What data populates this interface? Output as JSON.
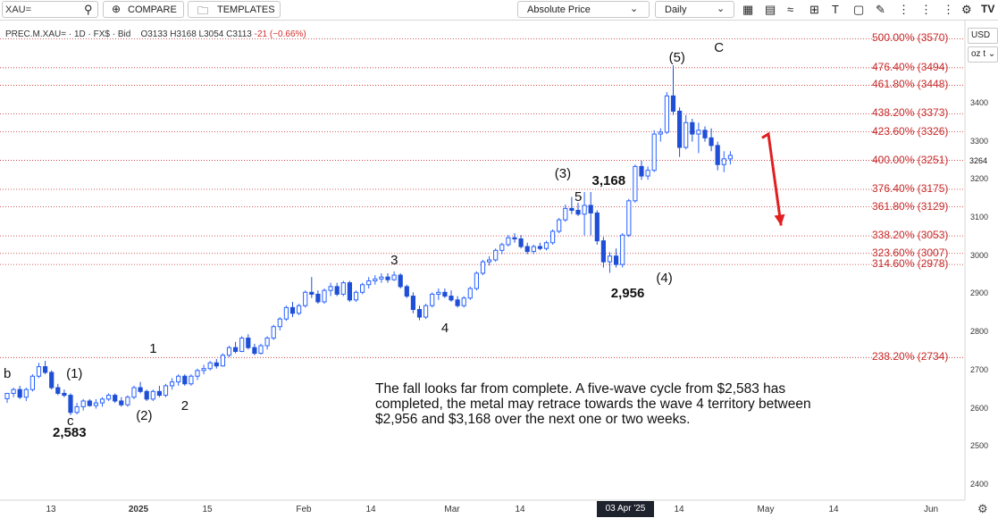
{
  "toolbar": {
    "symbol_value": "XAU=",
    "compare_label": "COMPARE",
    "templates_label": "TEMPLATES",
    "price_mode": "Absolute Price",
    "interval": "Daily",
    "icons": [
      "search-icon",
      "plus-circle-icon",
      "folder-icon",
      "chevron-down-icon",
      "candlestick-icon",
      "bar-chart-icon",
      "wave-icon",
      "crosshair-icon",
      "text-tool-icon",
      "shape-tool-icon",
      "drawing-tool-icon",
      "more-icon",
      "settings-icon"
    ]
  },
  "legend": {
    "symbol": "PREC.M.XAU=",
    "interval": "1D",
    "source": "FX$",
    "side": "Bid",
    "open": "O3133",
    "high": "H3168",
    "low": "L3054",
    "close": "C3113",
    "change": "-21 (−0.66%)"
  },
  "right_axis": {
    "currency": "USD",
    "unit": "oz t",
    "last_price": "3264",
    "ticks": [
      "3400",
      "3300",
      "3200",
      "3100",
      "3000",
      "2900",
      "2800",
      "2700",
      "2600",
      "2500",
      "2400"
    ]
  },
  "x_axis": {
    "ticks": [
      "13",
      "2025",
      "15",
      "Feb",
      "14",
      "Mar",
      "14",
      "14",
      "May",
      "14",
      "Jun"
    ],
    "crosshair_date": "03 Apr '25"
  },
  "commentary": "The fall looks far from complete.  A five-wave cycle from $2,583 has completed, the metal may retrace towards the wave 4 territory between $2,956 and $3,168 over the next one or two weeks.",
  "colors": {
    "up": "#2962ff",
    "down": "#1f4fd6",
    "fib": "#c62828",
    "arrow": "#e02020"
  },
  "chart_data": {
    "type": "candlestick",
    "y_range": [
      2360,
      3620
    ],
    "fib_levels": [
      {
        "label": "500.00% (3570)",
        "value": 3570
      },
      {
        "label": "476.40% (3494)",
        "value": 3494
      },
      {
        "label": "461.80% (3448)",
        "value": 3448
      },
      {
        "label": "438.20% (3373)",
        "value": 3373
      },
      {
        "label": "423.60% (3326)",
        "value": 3326
      },
      {
        "label": "400.00% (3251)",
        "value": 3251
      },
      {
        "label": "376.40% (3175)",
        "value": 3175
      },
      {
        "label": "361.80% (3129)",
        "value": 3129
      },
      {
        "label": "338.20% (3053)",
        "value": 3053
      },
      {
        "label": "323.60% (3007)",
        "value": 3007
      },
      {
        "label": "314.60% (2978)",
        "value": 2978
      },
      {
        "label": "238.20% (2734)",
        "value": 2734
      }
    ],
    "wave_labels": [
      {
        "text": "b",
        "i": 0,
        "price": 2690
      },
      {
        "text": "(1)",
        "i": 11,
        "price": 2690
      },
      {
        "text": "c",
        "i": 10,
        "price": 2565
      },
      {
        "text": "2,583",
        "i": 10,
        "price": 2535
      },
      {
        "text": "(2)",
        "i": 22,
        "price": 2580
      },
      {
        "text": "1",
        "i": 23,
        "price": 2755
      },
      {
        "text": "2",
        "i": 28,
        "price": 2605
      },
      {
        "text": "3",
        "i": 61,
        "price": 2988
      },
      {
        "text": "4",
        "i": 69,
        "price": 2810
      },
      {
        "text": "(3)",
        "i": 88,
        "price": 3215
      },
      {
        "text": "5",
        "i": 90,
        "price": 3155
      },
      {
        "text": "3,168",
        "i": 95,
        "price": 3195
      },
      {
        "text": "(4)",
        "i": 104,
        "price": 2940
      },
      {
        "text": "2,956",
        "i": 98,
        "price": 2900
      },
      {
        "text": "(5)",
        "i": 106,
        "price": 3520
      },
      {
        "text": "C",
        "i": 112,
        "price": 3545
      }
    ],
    "candles": [
      {
        "o": 2626,
        "h": 2640,
        "l": 2615,
        "c": 2640
      },
      {
        "o": 2640,
        "h": 2655,
        "l": 2630,
        "c": 2650
      },
      {
        "o": 2650,
        "h": 2660,
        "l": 2625,
        "c": 2630
      },
      {
        "o": 2630,
        "h": 2655,
        "l": 2620,
        "c": 2650
      },
      {
        "o": 2650,
        "h": 2690,
        "l": 2645,
        "c": 2685
      },
      {
        "o": 2685,
        "h": 2720,
        "l": 2680,
        "c": 2710
      },
      {
        "o": 2710,
        "h": 2725,
        "l": 2690,
        "c": 2695
      },
      {
        "o": 2695,
        "h": 2700,
        "l": 2650,
        "c": 2655
      },
      {
        "o": 2655,
        "h": 2665,
        "l": 2635,
        "c": 2640
      },
      {
        "o": 2640,
        "h": 2650,
        "l": 2630,
        "c": 2635
      },
      {
        "o": 2635,
        "h": 2640,
        "l": 2583,
        "c": 2590
      },
      {
        "o": 2590,
        "h": 2615,
        "l": 2585,
        "c": 2605
      },
      {
        "o": 2605,
        "h": 2625,
        "l": 2595,
        "c": 2620
      },
      {
        "o": 2620,
        "h": 2625,
        "l": 2605,
        "c": 2608
      },
      {
        "o": 2608,
        "h": 2625,
        "l": 2600,
        "c": 2615
      },
      {
        "o": 2615,
        "h": 2630,
        "l": 2605,
        "c": 2625
      },
      {
        "o": 2625,
        "h": 2640,
        "l": 2620,
        "c": 2635
      },
      {
        "o": 2635,
        "h": 2640,
        "l": 2615,
        "c": 2620
      },
      {
        "o": 2620,
        "h": 2630,
        "l": 2605,
        "c": 2610
      },
      {
        "o": 2610,
        "h": 2635,
        "l": 2605,
        "c": 2630
      },
      {
        "o": 2630,
        "h": 2660,
        "l": 2625,
        "c": 2655
      },
      {
        "o": 2655,
        "h": 2670,
        "l": 2640,
        "c": 2645
      },
      {
        "o": 2645,
        "h": 2650,
        "l": 2620,
        "c": 2625
      },
      {
        "o": 2625,
        "h": 2650,
        "l": 2620,
        "c": 2645
      },
      {
        "o": 2645,
        "h": 2660,
        "l": 2630,
        "c": 2635
      },
      {
        "o": 2635,
        "h": 2665,
        "l": 2630,
        "c": 2660
      },
      {
        "o": 2660,
        "h": 2680,
        "l": 2650,
        "c": 2670
      },
      {
        "o": 2670,
        "h": 2690,
        "l": 2660,
        "c": 2685
      },
      {
        "o": 2685,
        "h": 2690,
        "l": 2660,
        "c": 2665
      },
      {
        "o": 2665,
        "h": 2690,
        "l": 2660,
        "c": 2685
      },
      {
        "o": 2685,
        "h": 2705,
        "l": 2675,
        "c": 2700
      },
      {
        "o": 2700,
        "h": 2715,
        "l": 2690,
        "c": 2705
      },
      {
        "o": 2705,
        "h": 2725,
        "l": 2700,
        "c": 2720
      },
      {
        "o": 2720,
        "h": 2730,
        "l": 2705,
        "c": 2712
      },
      {
        "o": 2712,
        "h": 2745,
        "l": 2710,
        "c": 2740
      },
      {
        "o": 2740,
        "h": 2765,
        "l": 2735,
        "c": 2760
      },
      {
        "o": 2760,
        "h": 2775,
        "l": 2745,
        "c": 2750
      },
      {
        "o": 2750,
        "h": 2790,
        "l": 2748,
        "c": 2785
      },
      {
        "o": 2785,
        "h": 2795,
        "l": 2755,
        "c": 2760
      },
      {
        "o": 2760,
        "h": 2770,
        "l": 2740,
        "c": 2745
      },
      {
        "o": 2745,
        "h": 2770,
        "l": 2742,
        "c": 2765
      },
      {
        "o": 2765,
        "h": 2790,
        "l": 2755,
        "c": 2785
      },
      {
        "o": 2785,
        "h": 2820,
        "l": 2780,
        "c": 2815
      },
      {
        "o": 2815,
        "h": 2840,
        "l": 2805,
        "c": 2835
      },
      {
        "o": 2835,
        "h": 2870,
        "l": 2830,
        "c": 2865
      },
      {
        "o": 2865,
        "h": 2880,
        "l": 2840,
        "c": 2850
      },
      {
        "o": 2850,
        "h": 2875,
        "l": 2845,
        "c": 2870
      },
      {
        "o": 2870,
        "h": 2910,
        "l": 2865,
        "c": 2905
      },
      {
        "o": 2905,
        "h": 2945,
        "l": 2890,
        "c": 2900
      },
      {
        "o": 2900,
        "h": 2910,
        "l": 2875,
        "c": 2880
      },
      {
        "o": 2880,
        "h": 2915,
        "l": 2875,
        "c": 2910
      },
      {
        "o": 2910,
        "h": 2930,
        "l": 2895,
        "c": 2920
      },
      {
        "o": 2920,
        "h": 2930,
        "l": 2895,
        "c": 2900
      },
      {
        "o": 2900,
        "h": 2935,
        "l": 2895,
        "c": 2930
      },
      {
        "o": 2930,
        "h": 2935,
        "l": 2880,
        "c": 2885
      },
      {
        "o": 2885,
        "h": 2910,
        "l": 2880,
        "c": 2905
      },
      {
        "o": 2905,
        "h": 2930,
        "l": 2900,
        "c": 2925
      },
      {
        "o": 2925,
        "h": 2945,
        "l": 2915,
        "c": 2935
      },
      {
        "o": 2935,
        "h": 2950,
        "l": 2925,
        "c": 2940
      },
      {
        "o": 2940,
        "h": 2955,
        "l": 2930,
        "c": 2945
      },
      {
        "o": 2945,
        "h": 2955,
        "l": 2930,
        "c": 2938
      },
      {
        "o": 2938,
        "h": 2960,
        "l": 2935,
        "c": 2950
      },
      {
        "o": 2950,
        "h": 2955,
        "l": 2915,
        "c": 2920
      },
      {
        "o": 2920,
        "h": 2925,
        "l": 2890,
        "c": 2895
      },
      {
        "o": 2895,
        "h": 2905,
        "l": 2850,
        "c": 2860
      },
      {
        "o": 2860,
        "h": 2870,
        "l": 2832,
        "c": 2840
      },
      {
        "o": 2840,
        "h": 2875,
        "l": 2835,
        "c": 2870
      },
      {
        "o": 2870,
        "h": 2905,
        "l": 2865,
        "c": 2900
      },
      {
        "o": 2900,
        "h": 2915,
        "l": 2885,
        "c": 2905
      },
      {
        "o": 2905,
        "h": 2915,
        "l": 2890,
        "c": 2895
      },
      {
        "o": 2895,
        "h": 2910,
        "l": 2880,
        "c": 2885
      },
      {
        "o": 2885,
        "h": 2895,
        "l": 2865,
        "c": 2870
      },
      {
        "o": 2870,
        "h": 2895,
        "l": 2865,
        "c": 2890
      },
      {
        "o": 2890,
        "h": 2920,
        "l": 2885,
        "c": 2915
      },
      {
        "o": 2915,
        "h": 2960,
        "l": 2910,
        "c": 2955
      },
      {
        "o": 2955,
        "h": 2990,
        "l": 2950,
        "c": 2985
      },
      {
        "o": 2985,
        "h": 3000,
        "l": 2975,
        "c": 2990
      },
      {
        "o": 2990,
        "h": 3020,
        "l": 2985,
        "c": 3015
      },
      {
        "o": 3015,
        "h": 3035,
        "l": 3005,
        "c": 3030
      },
      {
        "o": 3030,
        "h": 3055,
        "l": 3025,
        "c": 3048
      },
      {
        "o": 3048,
        "h": 3060,
        "l": 3035,
        "c": 3045
      },
      {
        "o": 3045,
        "h": 3055,
        "l": 3020,
        "c": 3025
      },
      {
        "o": 3025,
        "h": 3035,
        "l": 3005,
        "c": 3012
      },
      {
        "o": 3012,
        "h": 3030,
        "l": 3005,
        "c": 3025
      },
      {
        "o": 3025,
        "h": 3035,
        "l": 3015,
        "c": 3020
      },
      {
        "o": 3020,
        "h": 3040,
        "l": 3015,
        "c": 3035
      },
      {
        "o": 3035,
        "h": 3070,
        "l": 3030,
        "c": 3065
      },
      {
        "o": 3065,
        "h": 3100,
        "l": 3060,
        "c": 3095
      },
      {
        "o": 3095,
        "h": 3135,
        "l": 3090,
        "c": 3125
      },
      {
        "o": 3125,
        "h": 3155,
        "l": 3110,
        "c": 3120
      },
      {
        "o": 3120,
        "h": 3140,
        "l": 3105,
        "c": 3110
      },
      {
        "o": 3110,
        "h": 3168,
        "l": 3054,
        "c": 3133
      },
      {
        "o": 3133,
        "h": 3168,
        "l": 3054,
        "c": 3113
      },
      {
        "o": 3113,
        "h": 3120,
        "l": 3030,
        "c": 3040
      },
      {
        "o": 3040,
        "h": 3050,
        "l": 2970,
        "c": 2985
      },
      {
        "o": 2985,
        "h": 3010,
        "l": 2956,
        "c": 3000
      },
      {
        "o": 3000,
        "h": 3020,
        "l": 2970,
        "c": 2978
      },
      {
        "o": 2978,
        "h": 3060,
        "l": 2970,
        "c": 3055
      },
      {
        "o": 3055,
        "h": 3150,
        "l": 3050,
        "c": 3145
      },
      {
        "o": 3145,
        "h": 3240,
        "l": 3140,
        "c": 3235
      },
      {
        "o": 3235,
        "h": 3250,
        "l": 3200,
        "c": 3210
      },
      {
        "o": 3210,
        "h": 3235,
        "l": 3200,
        "c": 3225
      },
      {
        "o": 3225,
        "h": 3330,
        "l": 3220,
        "c": 3320
      },
      {
        "o": 3320,
        "h": 3335,
        "l": 3300,
        "c": 3325
      },
      {
        "o": 3325,
        "h": 3430,
        "l": 3320,
        "c": 3420
      },
      {
        "o": 3420,
        "h": 3500,
        "l": 3370,
        "c": 3380
      },
      {
        "o": 3380,
        "h": 3390,
        "l": 3260,
        "c": 3285
      },
      {
        "o": 3285,
        "h": 3370,
        "l": 3280,
        "c": 3350
      },
      {
        "o": 3350,
        "h": 3360,
        "l": 3300,
        "c": 3320
      },
      {
        "o": 3320,
        "h": 3350,
        "l": 3270,
        "c": 3330
      },
      {
        "o": 3330,
        "h": 3340,
        "l": 3300,
        "c": 3310
      },
      {
        "o": 3310,
        "h": 3335,
        "l": 3275,
        "c": 3290
      },
      {
        "o": 3290,
        "h": 3300,
        "l": 3225,
        "c": 3240
      },
      {
        "o": 3240,
        "h": 3275,
        "l": 3220,
        "c": 3255
      },
      {
        "o": 3255,
        "h": 3275,
        "l": 3240,
        "c": 3264
      }
    ],
    "forecast": {
      "from_i": 119,
      "from_price": 3310,
      "peak_i": 120,
      "peak_price": 3320,
      "to_i": 122,
      "to_price": 3080
    }
  }
}
